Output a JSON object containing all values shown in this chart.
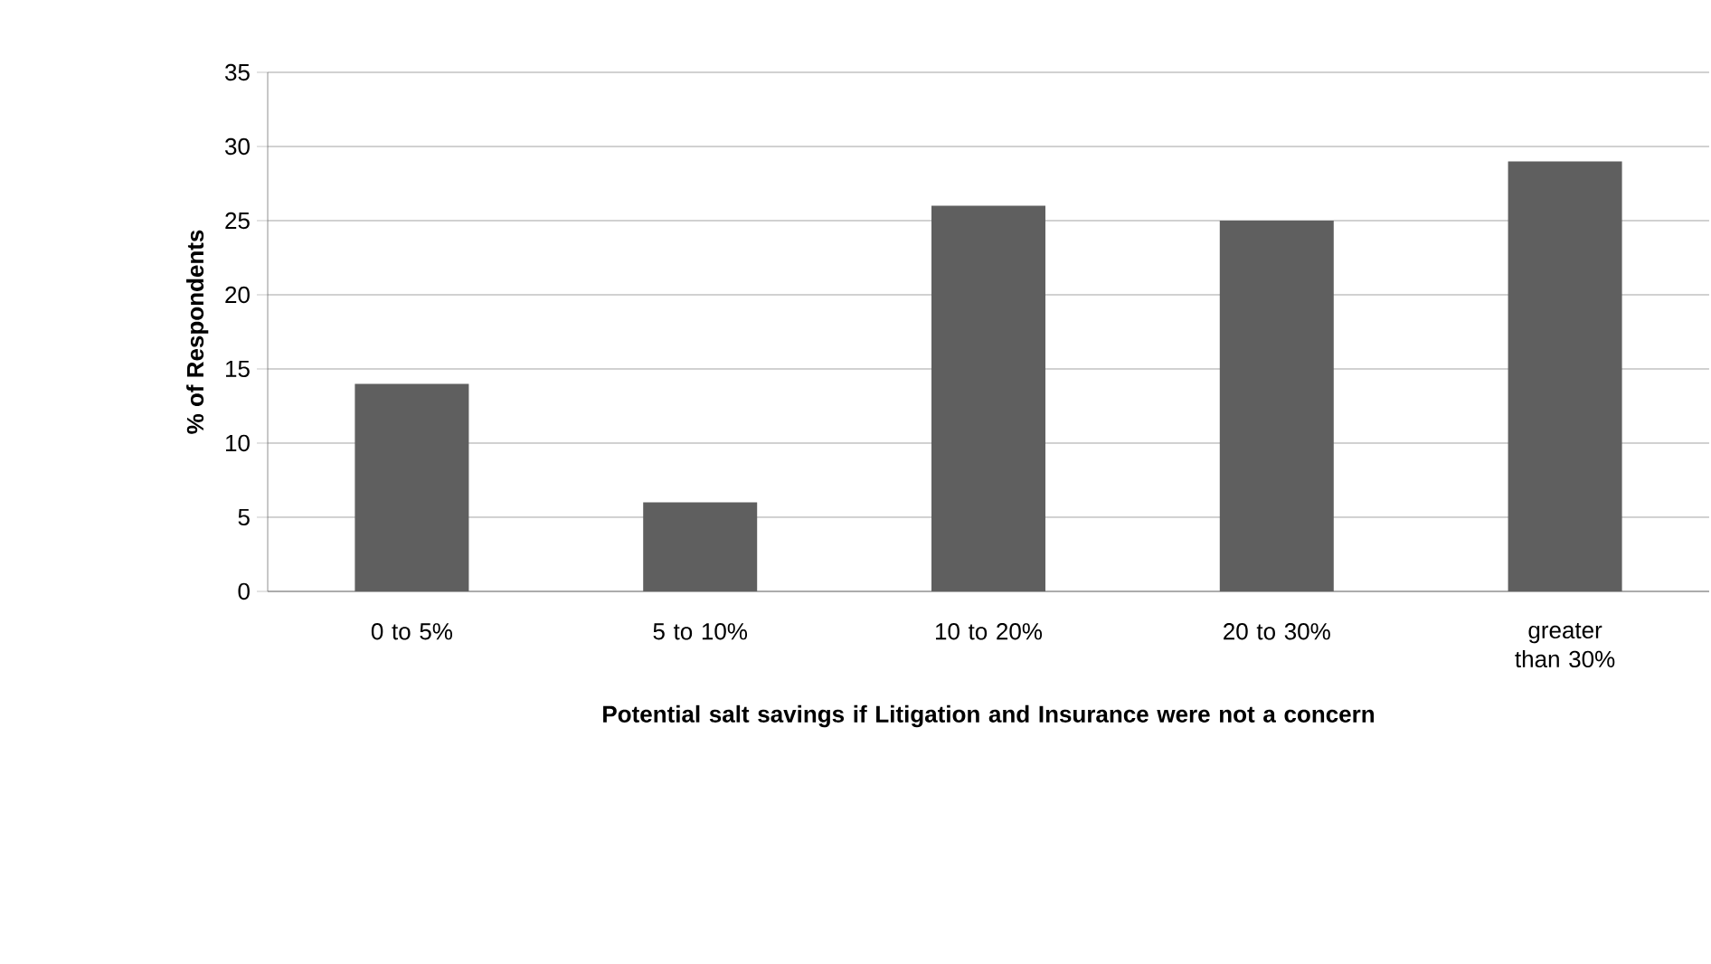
{
  "chart_data": {
    "type": "bar",
    "xlabel": "**Potential salt savings if Litigation and Insurance were not a concern**",
    "ylabel": "**% of Respondents**",
    "categories": [
      "0 to 5%",
      "5 to 10%",
      "10 to 20%",
      "20 to 30%",
      "greater than 30%"
    ],
    "values": [
      14,
      6,
      26,
      25,
      29
    ],
    "color": "#5f5f5f",
    "ylim": [
      0,
      35
    ],
    "yticks": [
      0,
      5,
      10,
      15,
      20,
      25,
      30,
      35
    ],
    "grid": "y"
  }
}
